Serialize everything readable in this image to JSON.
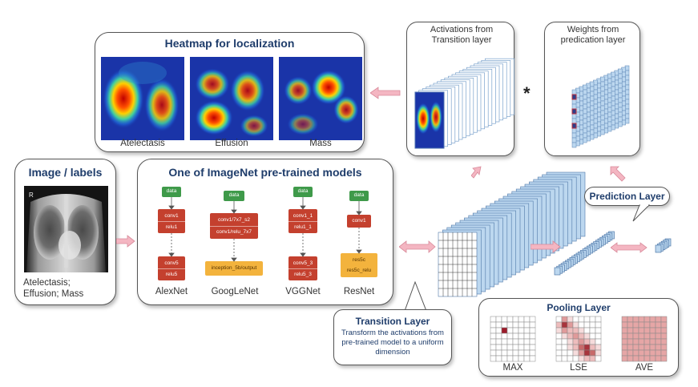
{
  "heatmap_panel": {
    "title": "Heatmap for localization",
    "items": [
      "Atelectasis",
      "Effusion",
      "Mass"
    ]
  },
  "activations": {
    "label": "Activations from Transition layer"
  },
  "weights": {
    "label": "Weights from predication layer"
  },
  "multiply_symbol": "*",
  "image_panel": {
    "title": "Image / labels",
    "labels": "Atelectasis; Effusion; Mass"
  },
  "models_panel": {
    "title": "One of ImageNet pre-trained models",
    "models": [
      {
        "name": "AlexNet",
        "input": "data",
        "top_block": [
          "conv1",
          "relu1"
        ],
        "bottom_block": [
          "conv5",
          "relu5"
        ]
      },
      {
        "name": "GoogLeNet",
        "input": "data",
        "top_block": [
          "conv1/7x7_s2",
          "conv1/relu_7x7"
        ],
        "bottom_block": [
          "inception_5b/output"
        ]
      },
      {
        "name": "VGGNet",
        "input": "data",
        "top_block": [
          "conv1_1",
          "relu1_1"
        ],
        "bottom_block": [
          "conv5_3",
          "relu5_3"
        ]
      },
      {
        "name": "ResNet",
        "input": "data",
        "top_block": [
          "conv1"
        ],
        "bottom_block": [
          "res5c",
          "res5c_relu"
        ]
      }
    ]
  },
  "prediction_layer": {
    "title": "Prediction Layer"
  },
  "transition_layer": {
    "title": "Transition Layer",
    "description": "Transform the activations from pre-trained model to a uniform dimension"
  },
  "pooling_panel": {
    "title": "Pooling Layer",
    "items": [
      "MAX",
      "LSE",
      "AVE"
    ]
  },
  "colors": {
    "title_blue": "#1f3d6b",
    "arrow_pink": "#f4b6c2",
    "layer_blue": "#bcd7ef",
    "node_green": "#3f9a4a",
    "node_red": "#c4402e",
    "node_orange": "#f3b33d"
  }
}
